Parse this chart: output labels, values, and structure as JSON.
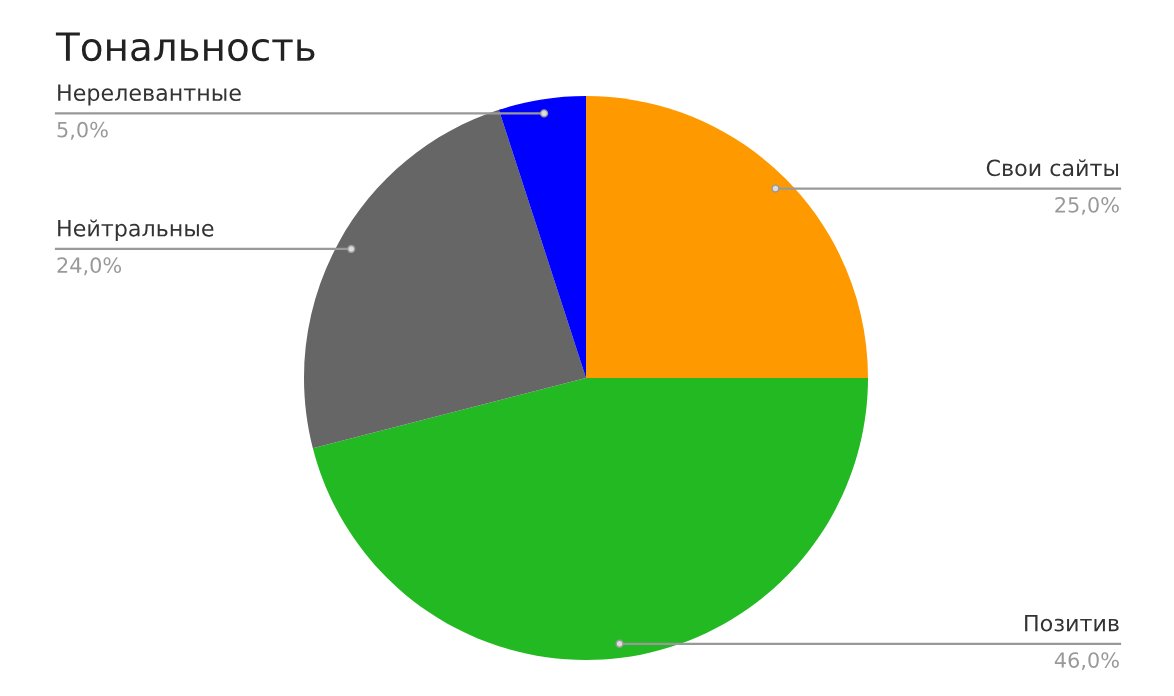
{
  "chart_data": {
    "type": "pie",
    "title": "Тональность",
    "categories": [
      "Свои сайты",
      "Позитив",
      "Нейтральные",
      "Нерелевантные"
    ],
    "values": [
      25,
      46,
      24,
      5
    ],
    "colors": [
      "#ff9900",
      "#22b922",
      "#666666",
      "#0000ff"
    ],
    "value_labels": [
      "25,0%",
      "46,0%",
      "24,0%",
      "5,0%"
    ],
    "legend": false
  }
}
